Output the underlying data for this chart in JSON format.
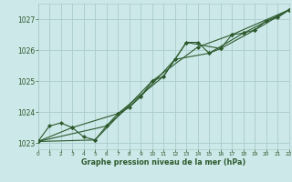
{
  "title": "Graphe pression niveau de la mer (hPa)",
  "background_color": "#cce8e8",
  "grid_color": "#aacccc",
  "line_color": "#2d5a2d",
  "xlim": [
    0,
    22
  ],
  "ylim": [
    1022.8,
    1027.5
  ],
  "yticks": [
    1023,
    1024,
    1025,
    1026,
    1027
  ],
  "xticks": [
    0,
    1,
    2,
    3,
    4,
    5,
    6,
    7,
    8,
    9,
    10,
    11,
    12,
    13,
    14,
    15,
    16,
    17,
    18,
    19,
    20,
    21,
    22
  ],
  "series1": [
    [
      0,
      1023.05
    ],
    [
      1,
      1023.55
    ],
    [
      2,
      1023.65
    ],
    [
      3,
      1023.5
    ],
    [
      4,
      1023.2
    ],
    [
      5,
      1023.1
    ],
    [
      6,
      1023.55
    ],
    [
      7,
      1023.95
    ],
    [
      8,
      1024.15
    ],
    [
      9,
      1024.5
    ],
    [
      10,
      1025.0
    ],
    [
      11,
      1025.15
    ],
    [
      12,
      1025.7
    ],
    [
      13,
      1026.25
    ],
    [
      14,
      1026.25
    ],
    [
      15,
      1025.9
    ],
    [
      16,
      1026.05
    ],
    [
      17,
      1026.5
    ],
    [
      18,
      1026.55
    ],
    [
      19,
      1026.65
    ],
    [
      20,
      1026.95
    ],
    [
      21,
      1027.05
    ],
    [
      22,
      1027.3
    ]
  ],
  "series2": [
    [
      0,
      1023.05
    ],
    [
      5,
      1023.1
    ],
    [
      10,
      1025.0
    ],
    [
      14,
      1026.1
    ],
    [
      17,
      1026.5
    ],
    [
      22,
      1027.3
    ]
  ],
  "series3": [
    [
      0,
      1023.05
    ],
    [
      3,
      1023.5
    ],
    [
      7,
      1023.95
    ],
    [
      11,
      1025.15
    ],
    [
      13,
      1026.25
    ],
    [
      16,
      1026.05
    ],
    [
      19,
      1026.65
    ],
    [
      22,
      1027.3
    ]
  ],
  "series4": [
    [
      0,
      1023.05
    ],
    [
      6,
      1023.55
    ],
    [
      9,
      1024.5
    ],
    [
      12,
      1025.7
    ],
    [
      15,
      1025.9
    ],
    [
      18,
      1026.55
    ],
    [
      22,
      1027.3
    ]
  ],
  "figsize": [
    3.2,
    2.0
  ],
  "dpi": 100
}
